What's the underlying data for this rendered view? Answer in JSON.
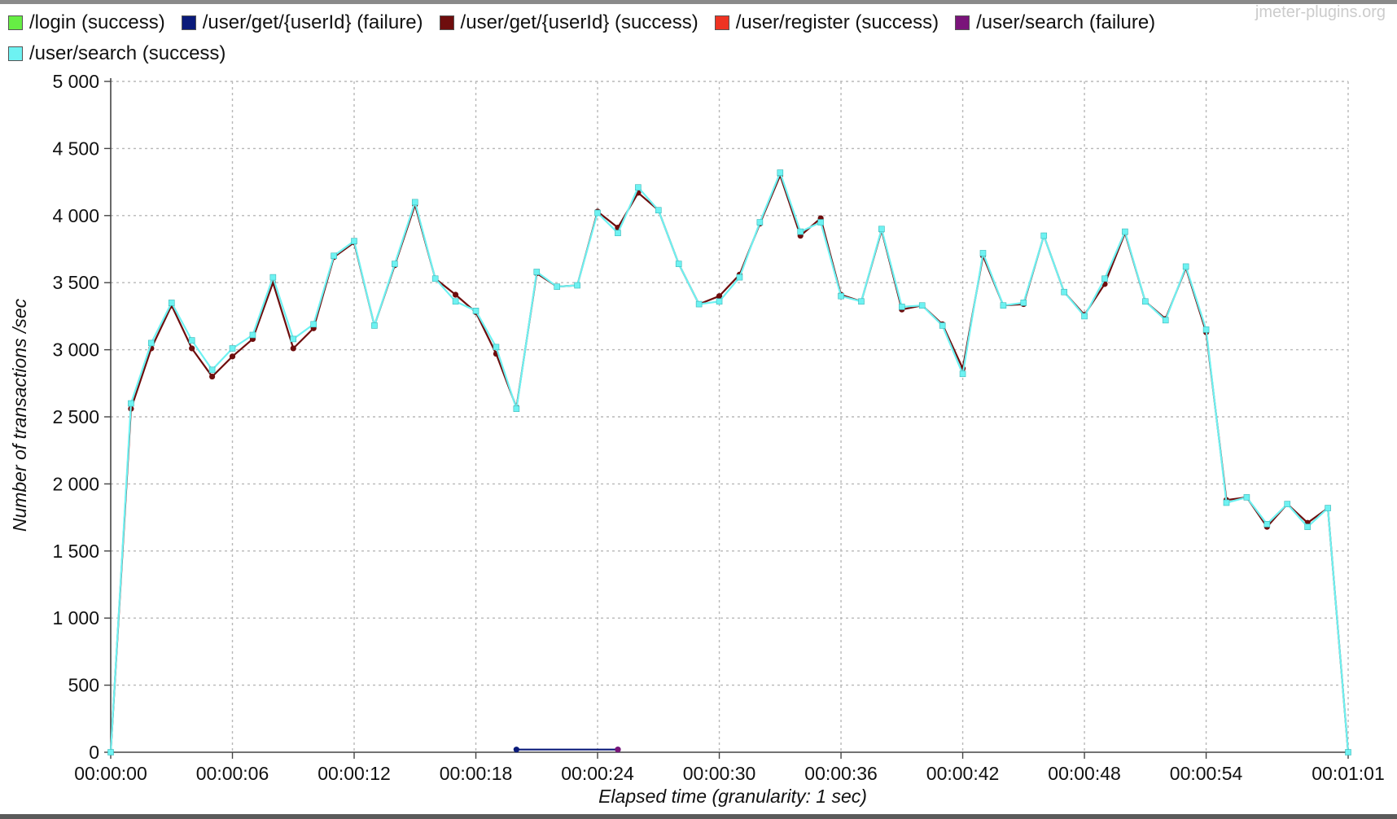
{
  "watermark": "jmeter-plugins.org",
  "legend": [
    {
      "label": "/login (success)",
      "color": "#66ee44"
    },
    {
      "label": "/user/get/{userId} (failure)",
      "color": "#0a1a7a"
    },
    {
      "label": "/user/get/{userId} (success)",
      "color": "#6e0d0d"
    },
    {
      "label": "/user/register (success)",
      "color": "#ee3322"
    },
    {
      "label": "/user/search (failure)",
      "color": "#7a147a"
    },
    {
      "label": "/user/search (success)",
      "color": "#6ef2f2"
    }
  ],
  "chart_data": {
    "type": "line",
    "title": "",
    "xlabel": "Elapsed time (granularity: 1 sec)",
    "ylabel": "Number of transactions /sec",
    "xlim": [
      0,
      61
    ],
    "ylim": [
      0,
      5000
    ],
    "yticks": [
      0,
      500,
      1000,
      1500,
      2000,
      2500,
      3000,
      3500,
      4000,
      4500,
      5000
    ],
    "ytick_labels": [
      "0",
      "500",
      "1 000",
      "1 500",
      "2 000",
      "2 500",
      "3 000",
      "3 500",
      "4 000",
      "4 500",
      "5 000"
    ],
    "xticks": [
      0,
      6,
      12,
      18,
      24,
      30,
      36,
      42,
      48,
      54,
      61
    ],
    "xtick_labels": [
      "00:00:00",
      "00:00:06",
      "00:00:12",
      "00:00:18",
      "00:00:24",
      "00:00:30",
      "00:00:36",
      "00:00:42",
      "00:00:48",
      "00:00:54",
      "00:01:01"
    ],
    "grid": true,
    "legend_position": "top",
    "series": [
      {
        "name": "/user/get/{userId} (success)",
        "color": "#6e0d0d",
        "marker": "circle",
        "x": [
          0,
          1,
          2,
          3,
          4,
          5,
          6,
          7,
          8,
          9,
          10,
          11,
          12,
          13,
          14,
          15,
          16,
          17,
          18,
          19,
          20,
          21,
          22,
          23,
          24,
          25,
          26,
          27,
          28,
          29,
          30,
          31,
          32,
          33,
          34,
          35,
          36,
          37,
          38,
          39,
          40,
          41,
          42,
          43,
          44,
          45,
          46,
          47,
          48,
          49,
          50,
          51,
          52,
          53,
          54,
          55,
          56,
          57,
          58,
          59,
          60,
          61
        ],
        "y": [
          0,
          2560,
          3010,
          3330,
          3010,
          2800,
          2950,
          3080,
          3500,
          3010,
          3160,
          3690,
          3800,
          3180,
          3630,
          4080,
          3530,
          3410,
          3280,
          2970,
          2570,
          3570,
          3470,
          3480,
          4030,
          3910,
          4170,
          4040,
          3640,
          3340,
          3400,
          3560,
          3940,
          4300,
          3850,
          3980,
          3410,
          3360,
          3890,
          3300,
          3330,
          3190,
          2860,
          3700,
          3330,
          3340,
          3850,
          3430,
          3260,
          3490,
          3870,
          3360,
          3230,
          3610,
          3130,
          1880,
          1900,
          1680,
          1850,
          1710,
          1820,
          0
        ]
      },
      {
        "name": "/user/search (success)",
        "color": "#6ef2f2",
        "marker": "square",
        "x": [
          0,
          1,
          2,
          3,
          4,
          5,
          6,
          7,
          8,
          9,
          10,
          11,
          12,
          13,
          14,
          15,
          16,
          17,
          18,
          19,
          20,
          21,
          22,
          23,
          24,
          25,
          26,
          27,
          28,
          29,
          30,
          31,
          32,
          33,
          34,
          35,
          36,
          37,
          38,
          39,
          40,
          41,
          42,
          43,
          44,
          45,
          46,
          47,
          48,
          49,
          50,
          51,
          52,
          53,
          54,
          55,
          56,
          57,
          58,
          59,
          60,
          61
        ],
        "y": [
          0,
          2600,
          3050,
          3350,
          3070,
          2850,
          3010,
          3110,
          3540,
          3080,
          3190,
          3700,
          3810,
          3180,
          3640,
          4100,
          3530,
          3360,
          3290,
          3020,
          2560,
          3580,
          3470,
          3480,
          4020,
          3870,
          4210,
          4040,
          3640,
          3340,
          3360,
          3540,
          3950,
          4320,
          3880,
          3950,
          3400,
          3360,
          3900,
          3320,
          3330,
          3180,
          2820,
          3720,
          3330,
          3350,
          3850,
          3430,
          3250,
          3530,
          3880,
          3360,
          3220,
          3620,
          3150,
          1860,
          1900,
          1700,
          1850,
          1680,
          1820,
          0
        ]
      },
      {
        "name": "/user/get/{userId} (failure)",
        "color": "#0a1a7a",
        "marker": "circle",
        "x": [
          20,
          25
        ],
        "y": [
          20,
          20
        ]
      },
      {
        "name": "/user/search (failure)",
        "color": "#7a147a",
        "marker": "circle",
        "x": [
          25
        ],
        "y": [
          20
        ]
      }
    ]
  }
}
